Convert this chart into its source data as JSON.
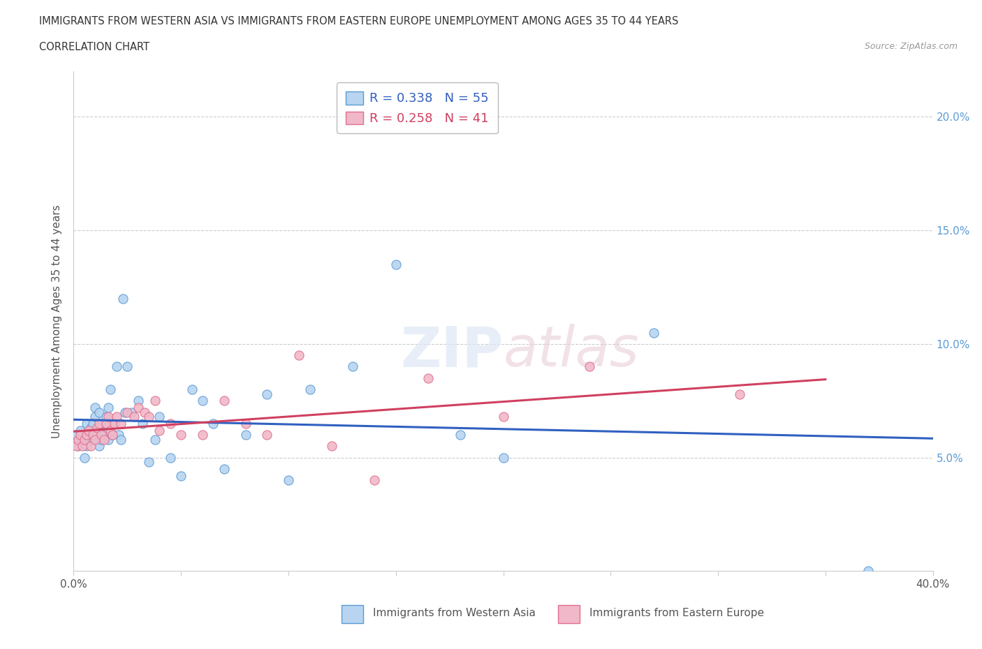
{
  "title_line1": "IMMIGRANTS FROM WESTERN ASIA VS IMMIGRANTS FROM EASTERN EUROPE UNEMPLOYMENT AMONG AGES 35 TO 44 YEARS",
  "title_line2": "CORRELATION CHART",
  "source_text": "Source: ZipAtlas.com",
  "ylabel": "Unemployment Among Ages 35 to 44 years",
  "xlim": [
    0.0,
    0.4
  ],
  "ylim": [
    0.0,
    0.22
  ],
  "xticks": [
    0.0,
    0.05,
    0.1,
    0.15,
    0.2,
    0.25,
    0.3,
    0.35,
    0.4
  ],
  "yticks": [
    0.0,
    0.05,
    0.1,
    0.15,
    0.2
  ],
  "series1_label": "Immigrants from Western Asia",
  "series2_label": "Immigrants from Eastern Europe",
  "series1_color": "#b8d4f0",
  "series2_color": "#f0b8c8",
  "series1_edge_color": "#5b9bd5",
  "series2_edge_color": "#e07090",
  "series1_line_color": "#3060c0",
  "series2_line_color": "#d04060",
  "R1": 0.338,
  "N1": 55,
  "R2": 0.258,
  "N2": 41,
  "watermark": "ZIPatlas",
  "background_color": "#ffffff",
  "series1_x": [
    0.001,
    0.002,
    0.003,
    0.004,
    0.005,
    0.005,
    0.006,
    0.006,
    0.007,
    0.008,
    0.009,
    0.009,
    0.01,
    0.01,
    0.011,
    0.012,
    0.012,
    0.013,
    0.013,
    0.014,
    0.015,
    0.015,
    0.016,
    0.016,
    0.017,
    0.018,
    0.019,
    0.02,
    0.021,
    0.022,
    0.023,
    0.024,
    0.025,
    0.027,
    0.03,
    0.032,
    0.035,
    0.038,
    0.04,
    0.045,
    0.05,
    0.055,
    0.06,
    0.065,
    0.07,
    0.08,
    0.09,
    0.1,
    0.11,
    0.13,
    0.15,
    0.18,
    0.2,
    0.27,
    0.37
  ],
  "series1_y": [
    0.06,
    0.055,
    0.062,
    0.058,
    0.06,
    0.05,
    0.065,
    0.055,
    0.06,
    0.063,
    0.058,
    0.065,
    0.068,
    0.072,
    0.06,
    0.07,
    0.055,
    0.065,
    0.058,
    0.06,
    0.068,
    0.065,
    0.072,
    0.058,
    0.08,
    0.06,
    0.065,
    0.09,
    0.06,
    0.058,
    0.12,
    0.07,
    0.09,
    0.07,
    0.075,
    0.065,
    0.048,
    0.058,
    0.068,
    0.05,
    0.042,
    0.08,
    0.075,
    0.065,
    0.045,
    0.06,
    0.078,
    0.04,
    0.08,
    0.09,
    0.135,
    0.06,
    0.05,
    0.105,
    0.0
  ],
  "series2_x": [
    0.001,
    0.002,
    0.003,
    0.004,
    0.005,
    0.006,
    0.007,
    0.008,
    0.009,
    0.01,
    0.011,
    0.012,
    0.013,
    0.014,
    0.015,
    0.016,
    0.017,
    0.018,
    0.019,
    0.02,
    0.022,
    0.025,
    0.028,
    0.03,
    0.033,
    0.035,
    0.038,
    0.04,
    0.045,
    0.05,
    0.06,
    0.07,
    0.08,
    0.09,
    0.105,
    0.12,
    0.14,
    0.165,
    0.2,
    0.24,
    0.31
  ],
  "series2_y": [
    0.055,
    0.058,
    0.06,
    0.055,
    0.058,
    0.06,
    0.062,
    0.055,
    0.06,
    0.058,
    0.063,
    0.065,
    0.06,
    0.058,
    0.065,
    0.068,
    0.062,
    0.06,
    0.065,
    0.068,
    0.065,
    0.07,
    0.068,
    0.072,
    0.07,
    0.068,
    0.075,
    0.062,
    0.065,
    0.06,
    0.06,
    0.075,
    0.065,
    0.06,
    0.095,
    0.055,
    0.04,
    0.085,
    0.068,
    0.09,
    0.078
  ]
}
